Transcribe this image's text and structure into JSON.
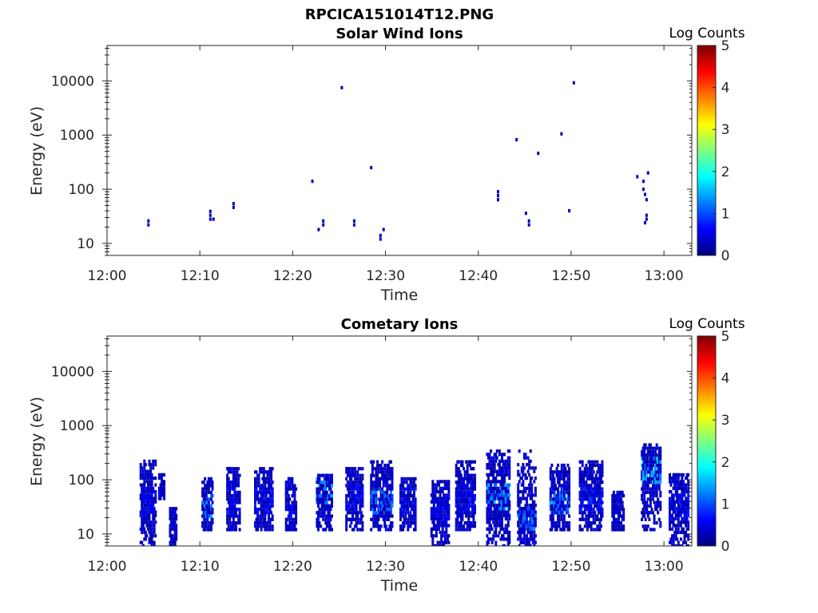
{
  "figure_title": "RPCICA151014T12.PNG",
  "colorbar_colors": [
    "#00007f",
    "#0000ff",
    "#007fff",
    "#00ffff",
    "#7fff7f",
    "#ffff00",
    "#ff7f00",
    "#ff0000",
    "#7f0000"
  ],
  "chart_data": [
    {
      "type": "heatmap",
      "title": "Solar Wind Ions",
      "xlabel": "Time",
      "ylabel": "Energy (eV)",
      "y_scale": "log",
      "xlim": [
        "12:00",
        "13:03"
      ],
      "ylim": [
        6,
        45000
      ],
      "x_ticks": [
        "12:00",
        "12:10",
        "12:20",
        "12:30",
        "12:40",
        "12:50",
        "13:00"
      ],
      "y_ticks": [
        "10",
        "100",
        "1000",
        "10000"
      ],
      "colorbar": {
        "label": "Log Counts",
        "range": [
          0,
          5
        ],
        "ticks": [
          "0",
          "1",
          "2",
          "3",
          "4",
          "5"
        ]
      },
      "cells": [
        {
          "t": "12:04:20",
          "e": 22,
          "v": 0.3
        },
        {
          "t": "12:04:20",
          "e": 26,
          "v": 0.3
        },
        {
          "t": "12:11:00",
          "e": 28,
          "v": 0.3
        },
        {
          "t": "12:11:00",
          "e": 33,
          "v": 0.3
        },
        {
          "t": "12:11:00",
          "e": 39,
          "v": 0.3
        },
        {
          "t": "12:11:20",
          "e": 28,
          "v": 0.3
        },
        {
          "t": "12:13:30",
          "e": 46,
          "v": 0.3
        },
        {
          "t": "12:13:30",
          "e": 54,
          "v": 0.3
        },
        {
          "t": "12:22:00",
          "e": 140,
          "v": 0.3
        },
        {
          "t": "12:22:40",
          "e": 18,
          "v": 0.3
        },
        {
          "t": "12:23:10",
          "e": 22,
          "v": 0.3
        },
        {
          "t": "12:23:10",
          "e": 26,
          "v": 0.3
        },
        {
          "t": "12:25:10",
          "e": 7500,
          "v": 0.3
        },
        {
          "t": "12:26:30",
          "e": 22,
          "v": 0.3
        },
        {
          "t": "12:26:30",
          "e": 26,
          "v": 0.3
        },
        {
          "t": "12:28:20",
          "e": 250,
          "v": 0.3
        },
        {
          "t": "12:29:20",
          "e": 12,
          "v": 0.3
        },
        {
          "t": "12:29:20",
          "e": 14,
          "v": 0.3
        },
        {
          "t": "12:29:40",
          "e": 18,
          "v": 0.3
        },
        {
          "t": "12:42:00",
          "e": 64,
          "v": 0.3
        },
        {
          "t": "12:42:00",
          "e": 76,
          "v": 0.3
        },
        {
          "t": "12:42:00",
          "e": 90,
          "v": 0.3
        },
        {
          "t": "12:44:00",
          "e": 820,
          "v": 0.3
        },
        {
          "t": "12:45:00",
          "e": 36,
          "v": 0.3
        },
        {
          "t": "12:45:20",
          "e": 22,
          "v": 0.3
        },
        {
          "t": "12:45:20",
          "e": 26,
          "v": 0.3
        },
        {
          "t": "12:46:20",
          "e": 460,
          "v": 0.3
        },
        {
          "t": "12:48:50",
          "e": 1050,
          "v": 0.3
        },
        {
          "t": "12:49:40",
          "e": 40,
          "v": 0.3
        },
        {
          "t": "12:50:10",
          "e": 9200,
          "v": 0.3
        },
        {
          "t": "12:57:00",
          "e": 170,
          "v": 0.3
        },
        {
          "t": "12:57:40",
          "e": 140,
          "v": 0.3
        },
        {
          "t": "12:57:40",
          "e": 100,
          "v": 0.3
        },
        {
          "t": "12:57:50",
          "e": 80,
          "v": 0.3
        },
        {
          "t": "12:58:00",
          "e": 64,
          "v": 0.3
        },
        {
          "t": "12:58:10",
          "e": 200,
          "v": 0.3
        },
        {
          "t": "12:57:50",
          "e": 24,
          "v": 0.3
        },
        {
          "t": "12:58:00",
          "e": 28,
          "v": 0.3
        },
        {
          "t": "12:58:00",
          "e": 33,
          "v": 0.3
        }
      ]
    },
    {
      "type": "heatmap",
      "title": "Cometary Ions",
      "xlabel": "Time",
      "ylabel": "Energy (eV)",
      "y_scale": "log",
      "xlim": [
        "12:00",
        "13:03"
      ],
      "ylim": [
        6,
        45000
      ],
      "x_ticks": [
        "12:00",
        "12:10",
        "12:20",
        "12:30",
        "12:40",
        "12:50",
        "13:00"
      ],
      "y_ticks": [
        "10",
        "100",
        "1000",
        "10000"
      ],
      "colorbar": {
        "label": "Log Counts",
        "range": [
          0,
          5
        ],
        "ticks": [
          "0",
          "1",
          "2",
          "3",
          "4",
          "5"
        ]
      },
      "bursts": [
        {
          "t": "12:03:30",
          "dur_s": 100,
          "emin": 6,
          "emax": 210,
          "peak": 0.7,
          "peak_e": 40
        },
        {
          "t": "12:05:30",
          "dur_s": 40,
          "emin": 45,
          "emax": 120,
          "peak": 0.5,
          "peak_e": 100
        },
        {
          "t": "12:06:40",
          "dur_s": 50,
          "emin": 6,
          "emax": 30,
          "peak": 0.5,
          "peak_e": 20
        },
        {
          "t": "12:10:10",
          "dur_s": 70,
          "emin": 12,
          "emax": 110,
          "peak": 1.5,
          "peak_e": 30
        },
        {
          "t": "12:12:50",
          "dur_s": 90,
          "emin": 12,
          "emax": 160,
          "peak": 0.8,
          "peak_e": 40
        },
        {
          "t": "12:15:50",
          "dur_s": 120,
          "emin": 12,
          "emax": 150,
          "peak": 0.8,
          "peak_e": 40
        },
        {
          "t": "12:19:10",
          "dur_s": 70,
          "emin": 12,
          "emax": 110,
          "peak": 0.7,
          "peak_e": 35
        },
        {
          "t": "12:22:30",
          "dur_s": 100,
          "emin": 12,
          "emax": 120,
          "peak": 1.5,
          "peak_e": 60
        },
        {
          "t": "12:25:40",
          "dur_s": 110,
          "emin": 12,
          "emax": 150,
          "peak": 0.8,
          "peak_e": 45
        },
        {
          "t": "12:28:20",
          "dur_s": 140,
          "emin": 12,
          "emax": 210,
          "peak": 1.4,
          "peak_e": 40
        },
        {
          "t": "12:31:30",
          "dur_s": 100,
          "emin": 12,
          "emax": 110,
          "peak": 0.8,
          "peak_e": 40
        },
        {
          "t": "12:34:50",
          "dur_s": 120,
          "emin": 6,
          "emax": 90,
          "peak": 0.7,
          "peak_e": 30
        },
        {
          "t": "12:37:30",
          "dur_s": 130,
          "emin": 12,
          "emax": 210,
          "peak": 0.8,
          "peak_e": 50
        },
        {
          "t": "12:40:50",
          "dur_s": 150,
          "emin": 6,
          "emax": 320,
          "peak": 1.6,
          "peak_e": 45
        },
        {
          "t": "12:44:10",
          "dur_s": 120,
          "emin": 6,
          "emax": 330,
          "peak": 1.3,
          "peak_e": 20
        },
        {
          "t": "12:47:40",
          "dur_s": 130,
          "emin": 12,
          "emax": 180,
          "peak": 1.4,
          "peak_e": 40
        },
        {
          "t": "12:50:50",
          "dur_s": 150,
          "emin": 12,
          "emax": 200,
          "peak": 0.9,
          "peak_e": 50
        },
        {
          "t": "12:54:20",
          "dur_s": 80,
          "emin": 12,
          "emax": 60,
          "peak": 0.5,
          "peak_e": 25
        },
        {
          "t": "12:57:30",
          "dur_s": 130,
          "emin": 12,
          "emax": 420,
          "peak": 1.8,
          "peak_e": 150
        },
        {
          "t": "13:00:30",
          "dur_s": 130,
          "emin": 6,
          "emax": 120,
          "peak": 0.8,
          "peak_e": 30
        }
      ]
    }
  ]
}
